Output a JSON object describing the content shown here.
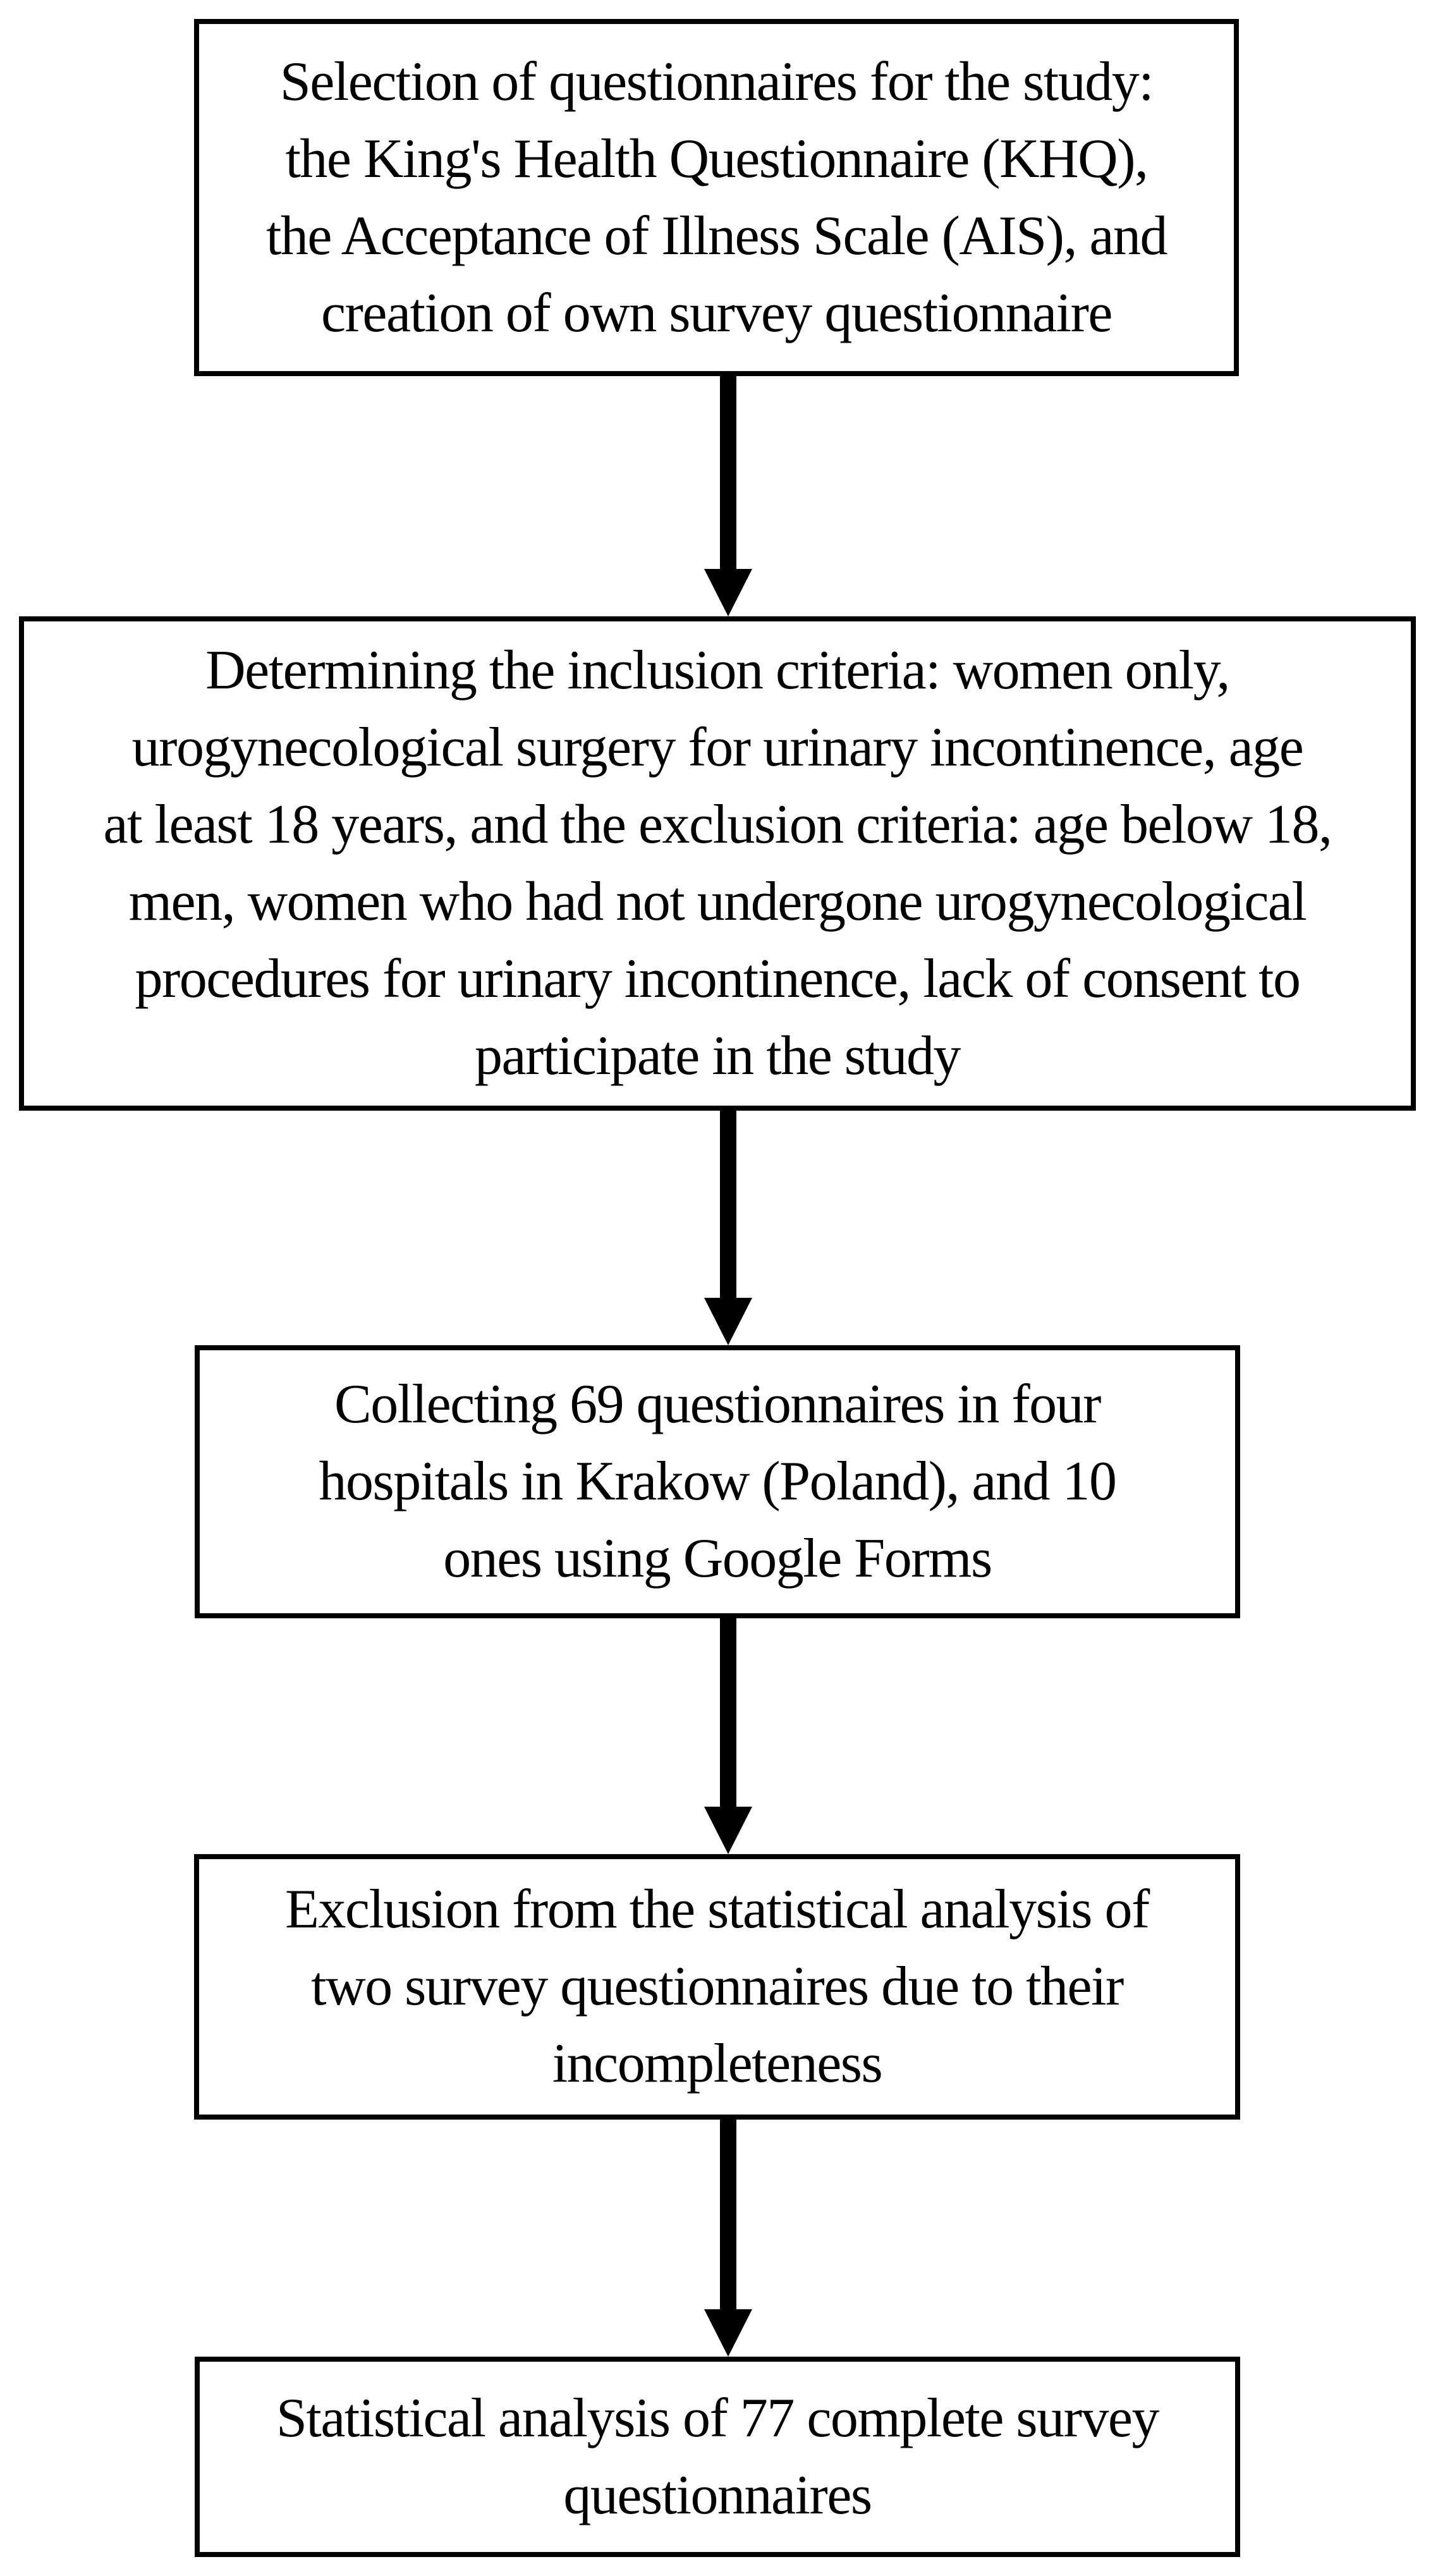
{
  "figure": {
    "type": "flowchart",
    "orientation": "vertical",
    "colors": {
      "background": "#ffffff",
      "box_fill": "#ffffff",
      "box_border": "#000000",
      "text": "#000000",
      "arrow": "#000000"
    },
    "steps": [
      {
        "id": 1,
        "text": "Selection of questionnaires for the study:\nthe King's Health Questionnaire (KHQ),\nthe Acceptance of Illness Scale (AIS), and\ncreation of own survey questionnaire"
      },
      {
        "id": 2,
        "text": "Determining the inclusion criteria: women only,\nurogynecological surgery for urinary incontinence, age\nat least 18 years, and the exclusion criteria: age below 18,\nmen, women who had not undergone urogynecological\nprocedures for urinary incontinence, lack of consent to\nparticipate in the study"
      },
      {
        "id": 3,
        "text": "Collecting 69 questionnaires in four\nhospitals in Krakow (Poland), and 10\nones using Google Forms"
      },
      {
        "id": 4,
        "text": "Exclusion from the statistical analysis of\ntwo survey questionnaires due to their\nincompleteness"
      },
      {
        "id": 5,
        "text": "Statistical analysis of 77 complete survey\nquestionnaires"
      }
    ],
    "connections": [
      {
        "from": 1,
        "to": 2
      },
      {
        "from": 2,
        "to": 3
      },
      {
        "from": 3,
        "to": 4
      },
      {
        "from": 4,
        "to": 5
      }
    ]
  }
}
